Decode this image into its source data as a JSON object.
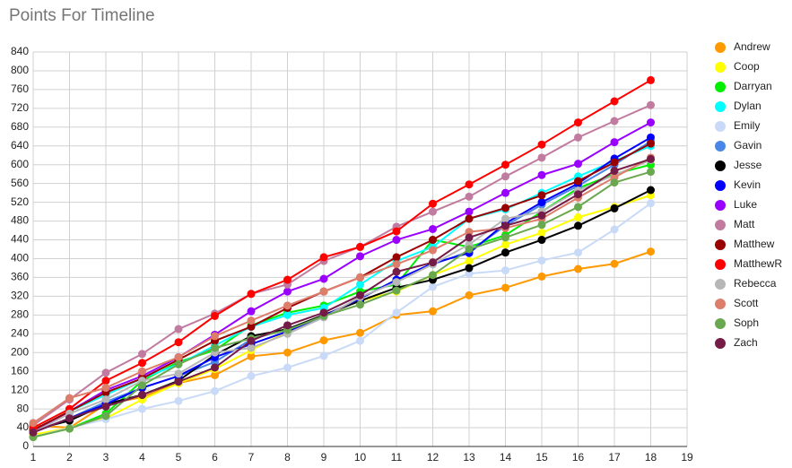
{
  "chart_data": {
    "type": "line",
    "title": "Points For Timeline",
    "x": [
      1,
      2,
      3,
      4,
      5,
      6,
      7,
      8,
      9,
      10,
      11,
      12,
      13,
      14,
      15,
      16,
      17,
      18
    ],
    "xlim": [
      1,
      19
    ],
    "xticks": [
      1,
      2,
      3,
      4,
      5,
      6,
      7,
      8,
      9,
      10,
      11,
      12,
      13,
      14,
      15,
      16,
      17,
      18,
      19
    ],
    "ylim": [
      0,
      840
    ],
    "yticks": [
      0,
      40,
      80,
      120,
      160,
      200,
      240,
      280,
      320,
      360,
      400,
      440,
      480,
      520,
      560,
      600,
      640,
      680,
      720,
      760,
      800,
      840
    ],
    "grid": true,
    "legend": "right",
    "series": [
      {
        "name": "Andrew",
        "color": "#ff9900",
        "values": [
          45,
          40,
          90,
          105,
          135,
          152,
          192,
          200,
          226,
          242,
          280,
          288,
          322,
          338,
          362,
          378,
          389,
          415
        ]
      },
      {
        "name": "Coop",
        "color": "#ffff00",
        "values": [
          25,
          40,
          60,
          100,
          135,
          165,
          205,
          245,
          280,
          310,
          330,
          365,
          395,
          430,
          455,
          488,
          510,
          535
        ]
      },
      {
        "name": "Darryan",
        "color": "#00ee00",
        "values": [
          20,
          38,
          70,
          140,
          180,
          205,
          258,
          285,
          300,
          330,
          345,
          440,
          425,
          450,
          500,
          550,
          580,
          600
        ]
      },
      {
        "name": "Dylan",
        "color": "#00ffff",
        "values": [
          35,
          75,
          110,
          145,
          175,
          215,
          255,
          280,
          295,
          345,
          395,
          425,
          485,
          505,
          540,
          575,
          608,
          640
        ]
      },
      {
        "name": "Emily",
        "color": "#c9daf8",
        "values": [
          20,
          40,
          58,
          80,
          97,
          118,
          150,
          168,
          193,
          225,
          285,
          340,
          368,
          375,
          396,
          413,
          462,
          518
        ]
      },
      {
        "name": "Gavin",
        "color": "#4a86e8",
        "values": [
          30,
          60,
          95,
          125,
          150,
          180,
          228,
          250,
          278,
          315,
          355,
          388,
          415,
          470,
          515,
          555,
          600,
          650
        ]
      },
      {
        "name": "Jesse",
        "color": "#000000",
        "values": [
          35,
          55,
          90,
          110,
          140,
          195,
          235,
          250,
          280,
          310,
          338,
          355,
          380,
          413,
          440,
          470,
          507,
          546
        ]
      },
      {
        "name": "Kevin",
        "color": "#0000ff",
        "values": [
          30,
          60,
          90,
          125,
          150,
          190,
          218,
          245,
          278,
          315,
          355,
          390,
          412,
          475,
          520,
          560,
          613,
          658
        ]
      },
      {
        "name": "Luke",
        "color": "#9900ff",
        "values": [
          30,
          75,
          120,
          150,
          190,
          238,
          288,
          330,
          357,
          405,
          440,
          463,
          500,
          540,
          578,
          602,
          648,
          690
        ]
      },
      {
        "name": "Matt",
        "color": "#c27ba0",
        "values": [
          45,
          100,
          157,
          197,
          250,
          283,
          325,
          345,
          395,
          425,
          468,
          500,
          532,
          575,
          615,
          658,
          693,
          727
        ]
      },
      {
        "name": "Matthew",
        "color": "#990000",
        "values": [
          35,
          75,
          115,
          145,
          185,
          225,
          255,
          295,
          330,
          360,
          403,
          440,
          485,
          508,
          535,
          565,
          605,
          645
        ]
      },
      {
        "name": "MatthewR",
        "color": "#ff0000",
        "values": [
          40,
          80,
          140,
          178,
          222,
          278,
          325,
          355,
          403,
          425,
          458,
          517,
          558,
          600,
          643,
          690,
          735,
          780
        ]
      },
      {
        "name": "Rebecca",
        "color": "#b7b7b7",
        "values": [
          30,
          70,
          100,
          140,
          155,
          200,
          210,
          240,
          275,
          318,
          350,
          388,
          430,
          485,
          500,
          545,
          578,
          610
        ]
      },
      {
        "name": "Scott",
        "color": "#dd7e6b",
        "values": [
          50,
          103,
          125,
          160,
          190,
          235,
          268,
          300,
          330,
          360,
          388,
          418,
          457,
          465,
          485,
          530,
          573,
          615
        ]
      },
      {
        "name": "Soph",
        "color": "#6aa84f",
        "values": [
          20,
          38,
          65,
          130,
          175,
          210,
          230,
          248,
          278,
          302,
          332,
          365,
          420,
          445,
          472,
          510,
          562,
          585
        ]
      },
      {
        "name": "Zach",
        "color": "#741b47",
        "values": [
          30,
          60,
          85,
          110,
          138,
          168,
          225,
          258,
          285,
          322,
          372,
          392,
          445,
          470,
          492,
          537,
          587,
          612
        ]
      }
    ]
  }
}
